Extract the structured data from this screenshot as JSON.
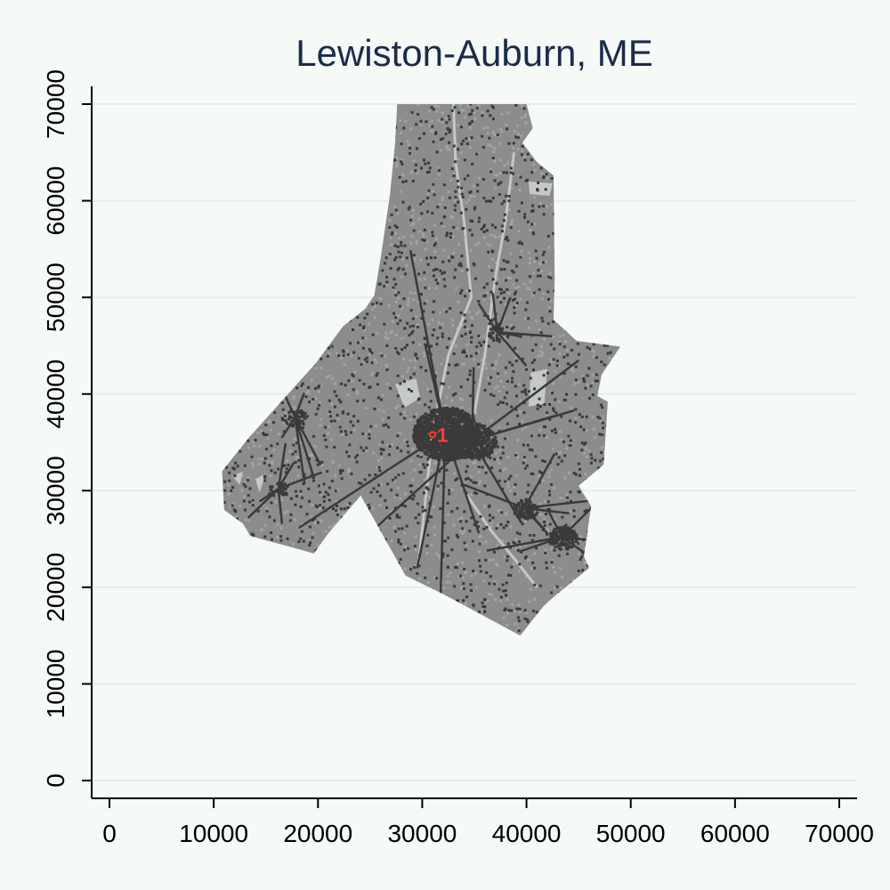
{
  "title": "Lewiston-Auburn, ME",
  "chart_data": {
    "type": "map",
    "title": "Lewiston-Auburn, ME",
    "xlim": [
      0,
      70000
    ],
    "ylim": [
      0,
      70000
    ],
    "x_ticks": [
      0,
      10000,
      20000,
      30000,
      40000,
      50000,
      60000,
      70000
    ],
    "y_ticks": [
      0,
      10000,
      20000,
      30000,
      40000,
      50000,
      60000,
      70000
    ],
    "x_tick_labels": [
      "0",
      "10000",
      "20000",
      "30000",
      "40000",
      "50000",
      "60000",
      "70000"
    ],
    "y_tick_labels": [
      "0",
      "10000",
      "20000",
      "30000",
      "40000",
      "50000",
      "60000",
      "70000"
    ],
    "grid": "horizontal",
    "region_outline": [
      [
        27600,
        70000
      ],
      [
        40000,
        70000
      ],
      [
        40600,
        67500
      ],
      [
        39600,
        66000
      ],
      [
        41000,
        64000
      ],
      [
        42600,
        62600
      ],
      [
        42700,
        52000
      ],
      [
        42600,
        47700
      ],
      [
        44800,
        45500
      ],
      [
        49000,
        44900
      ],
      [
        47200,
        42000
      ],
      [
        46800,
        39800
      ],
      [
        47800,
        39200
      ],
      [
        47400,
        32700
      ],
      [
        45000,
        30500
      ],
      [
        46200,
        28400
      ],
      [
        45500,
        23200
      ],
      [
        46000,
        22000
      ],
      [
        42600,
        19000
      ],
      [
        41600,
        18000
      ],
      [
        39400,
        15000
      ],
      [
        32000,
        19300
      ],
      [
        28400,
        21200
      ],
      [
        24100,
        29500
      ],
      [
        21000,
        25600
      ],
      [
        19600,
        23500
      ],
      [
        17300,
        24200
      ],
      [
        16600,
        24400
      ],
      [
        13500,
        25300
      ],
      [
        12800,
        26600
      ],
      [
        11000,
        28000
      ],
      [
        10800,
        32000
      ],
      [
        13300,
        35400
      ],
      [
        19800,
        43200
      ],
      [
        22400,
        47000
      ],
      [
        24500,
        48800
      ],
      [
        25400,
        50200
      ],
      [
        26000,
        54000
      ],
      [
        26900,
        60600
      ],
      [
        27400,
        66000
      ]
    ],
    "water_bodies": [
      [
        [
          27400,
          41000
        ],
        [
          29400,
          41600
        ],
        [
          29800,
          39600
        ],
        [
          28300,
          38600
        ]
      ],
      [
        [
          40200,
          62000
        ],
        [
          42500,
          61800
        ],
        [
          42200,
          60500
        ],
        [
          40300,
          60700
        ]
      ],
      [
        [
          40400,
          42200
        ],
        [
          42000,
          42600
        ],
        [
          41700,
          39000
        ],
        [
          40200,
          38700
        ]
      ],
      [
        [
          14000,
          31200
        ],
        [
          15000,
          31800
        ],
        [
          14400,
          29800
        ]
      ],
      [
        [
          11800,
          31500
        ],
        [
          12800,
          32000
        ],
        [
          12500,
          30600
        ]
      ]
    ],
    "rivers": [
      [
        [
          33000,
          70000
        ],
        [
          33200,
          64000
        ],
        [
          34000,
          58000
        ],
        [
          34700,
          50000
        ],
        [
          32500,
          44000
        ],
        [
          31000,
          36000
        ],
        [
          30200,
          28000
        ],
        [
          29600,
          22000
        ]
      ],
      [
        [
          38800,
          65000
        ],
        [
          38000,
          58000
        ],
        [
          37000,
          52000
        ],
        [
          36000,
          44000
        ],
        [
          35000,
          38000
        ]
      ],
      [
        [
          34000,
          30000
        ],
        [
          36500,
          26000
        ],
        [
          38800,
          23000
        ],
        [
          41000,
          20000
        ]
      ]
    ],
    "urban_centers": [
      {
        "x": 32200,
        "y": 36000,
        "radius": 3200,
        "strength": 1.0
      },
      {
        "x": 34800,
        "y": 35200,
        "radius": 2200,
        "strength": 0.8
      },
      {
        "x": 39800,
        "y": 28200,
        "radius": 1200,
        "strength": 0.55
      },
      {
        "x": 43400,
        "y": 25200,
        "radius": 1400,
        "strength": 0.7
      },
      {
        "x": 37200,
        "y": 46400,
        "radius": 1000,
        "strength": 0.35
      },
      {
        "x": 17800,
        "y": 37600,
        "radius": 1100,
        "strength": 0.35
      },
      {
        "x": 16200,
        "y": 30200,
        "radius": 900,
        "strength": 0.3
      }
    ],
    "marker": {
      "label": "1",
      "x": 31500,
      "y": 35800,
      "color": "#ff3b3b"
    },
    "colors": {
      "background": "#f5faf7",
      "land": "#8c8c8c",
      "land_light": "#a3a3a3",
      "developed": "#3a3a3a",
      "water": "#c4c8c6",
      "gridline": "#e4ecf0",
      "axis": "#000000",
      "title": "#1b2b4b"
    }
  }
}
